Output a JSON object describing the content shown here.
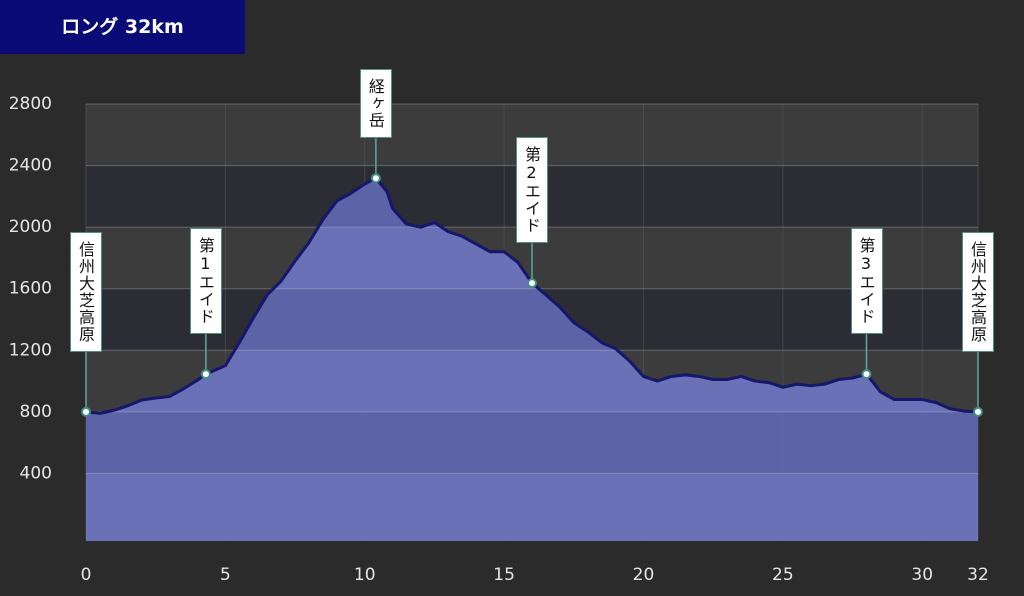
{
  "chart_data": {
    "type": "area",
    "title": "ロング 32km",
    "x": [
      0,
      0.5,
      1,
      1.5,
      2,
      2.5,
      3,
      3.5,
      4,
      4.3,
      5,
      5.5,
      6,
      6.5,
      7,
      7.5,
      8,
      8.5,
      9,
      9.5,
      10,
      10.4,
      10.8,
      11,
      11.5,
      12,
      12.5,
      13,
      13.5,
      14,
      14.5,
      15,
      15.5,
      16,
      16.5,
      17,
      17.5,
      18,
      18.5,
      19,
      19.5,
      20,
      20.5,
      21,
      21.5,
      22,
      22.5,
      23,
      23.5,
      24,
      24.5,
      25,
      25.5,
      26,
      26.5,
      27,
      27.5,
      28,
      28.5,
      29,
      29.5,
      30,
      30.5,
      31,
      31.5,
      32
    ],
    "values": [
      800,
      790,
      810,
      840,
      877,
      890,
      900,
      950,
      1006,
      1045,
      1100,
      1250,
      1409,
      1560,
      1650,
      1780,
      1900,
      2050,
      2170,
      2220,
      2280,
      2318,
      2230,
      2120,
      2020,
      2000,
      2030,
      1970,
      1940,
      1890,
      1840,
      1840,
      1770,
      1636,
      1560,
      1480,
      1380,
      1320,
      1250,
      1210,
      1130,
      1030,
      1000,
      1030,
      1040,
      1030,
      1010,
      1010,
      1030,
      1000,
      990,
      960,
      980,
      970,
      980,
      1010,
      1020,
      1045,
      930,
      880,
      880,
      880,
      860,
      820,
      805,
      800
    ],
    "color": "#6d74be",
    "line_color": "#14176a",
    "xlim": [
      0,
      32
    ],
    "ylim": [
      0,
      2800
    ],
    "xticks": [
      0,
      5,
      10,
      15,
      20,
      25,
      30,
      32
    ],
    "yticks": [
      400,
      800,
      1200,
      1600,
      2000,
      2400,
      2800
    ],
    "grid": true,
    "annotations": [
      {
        "label": "信州大芝高原",
        "x": 0,
        "value": 800
      },
      {
        "label": "第1エイド",
        "x": 4.3,
        "value": 1045
      },
      {
        "label": "経ヶ岳",
        "x": 10.4,
        "value": 2318
      },
      {
        "label": "第2エイド",
        "x": 16,
        "value": 1636
      },
      {
        "label": "第3エイド",
        "x": 28,
        "value": 1045
      },
      {
        "label": "信州大芝高原",
        "x": 32,
        "value": 800
      }
    ]
  }
}
